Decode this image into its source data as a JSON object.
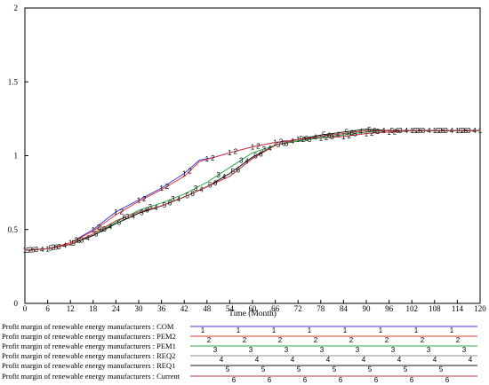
{
  "chart_data": {
    "type": "line",
    "xlabel": "Time (Month)",
    "ylabel": "",
    "xlim": [
      0,
      120
    ],
    "ylim": [
      0,
      2
    ],
    "x_ticks": [
      0,
      6,
      12,
      18,
      24,
      30,
      36,
      42,
      48,
      54,
      60,
      66,
      72,
      78,
      84,
      90,
      96,
      102,
      108,
      114,
      120
    ],
    "y_ticks": [
      0,
      0.5,
      1,
      1.5,
      2
    ],
    "x_tick_labels": [
      "0",
      "6",
      "12",
      "18",
      "24",
      "30",
      "36",
      "42",
      "48",
      "54",
      "60",
      "66",
      "72",
      "78",
      "84",
      "90",
      "96",
      "102",
      "108",
      "114",
      "120"
    ],
    "y_tick_labels": [
      "0",
      "0.5",
      "1",
      "1.5",
      "2"
    ],
    "grid": false,
    "legend_position": "bottom",
    "series": [
      {
        "name": "Profit margin of renewable energy manufacturers : COM",
        "marker": "1",
        "color": "#3b3bdc",
        "x": [
          0,
          6,
          12,
          18,
          24,
          30,
          36,
          42,
          46,
          50,
          54,
          60,
          66,
          72,
          78,
          84,
          90,
          96,
          102,
          108,
          114,
          120
        ],
        "y": [
          0.36,
          0.37,
          0.41,
          0.5,
          0.62,
          0.7,
          0.78,
          0.88,
          0.97,
          0.99,
          1.02,
          1.06,
          1.09,
          1.11,
          1.12,
          1.13,
          1.15,
          1.16,
          1.17,
          1.17,
          1.17,
          1.17
        ]
      },
      {
        "name": "Profit margin of renewable energy manufacturers : PEM2",
        "marker": "2",
        "color": "#e03c3c",
        "x": [
          0,
          6,
          12,
          18,
          24,
          30,
          36,
          42,
          46,
          50,
          54,
          60,
          66,
          72,
          78,
          84,
          90,
          96,
          102,
          108,
          114,
          120
        ],
        "y": [
          0.36,
          0.37,
          0.41,
          0.49,
          0.6,
          0.69,
          0.77,
          0.86,
          0.96,
          0.99,
          1.02,
          1.06,
          1.09,
          1.11,
          1.12,
          1.13,
          1.15,
          1.16,
          1.17,
          1.17,
          1.17,
          1.17
        ]
      },
      {
        "name": "Profit margin of renewable energy manufacturers : PEM1",
        "marker": "3",
        "color": "#2aa84a",
        "x": [
          0,
          6,
          12,
          18,
          24,
          30,
          36,
          42,
          48,
          54,
          60,
          66,
          72,
          78,
          84,
          90,
          96,
          102,
          108,
          114,
          120
        ],
        "y": [
          0.36,
          0.37,
          0.4,
          0.46,
          0.55,
          0.63,
          0.68,
          0.74,
          0.82,
          0.92,
          1.02,
          1.07,
          1.1,
          1.12,
          1.14,
          1.16,
          1.17,
          1.17,
          1.17,
          1.17,
          1.17
        ]
      },
      {
        "name": "Profit margin of renewable energy manufacturers : REQ2",
        "marker": "4",
        "color": "#8c8c8c",
        "x": [
          0,
          6,
          12,
          18,
          24,
          30,
          36,
          42,
          48,
          54,
          60,
          66,
          72,
          78,
          84,
          90,
          96,
          102,
          108,
          114,
          120
        ],
        "y": [
          0.36,
          0.37,
          0.4,
          0.46,
          0.54,
          0.61,
          0.66,
          0.72,
          0.79,
          0.88,
          0.99,
          1.07,
          1.11,
          1.13,
          1.15,
          1.17,
          1.17,
          1.17,
          1.17,
          1.17,
          1.17
        ]
      },
      {
        "name": "Profit margin of renewable energy manufacturers : REQ1",
        "marker": "5",
        "color": "#1a1a1a",
        "x": [
          0,
          6,
          12,
          18,
          24,
          30,
          36,
          42,
          48,
          54,
          60,
          66,
          72,
          78,
          84,
          90,
          96,
          102,
          108,
          114,
          120
        ],
        "y": [
          0.36,
          0.37,
          0.4,
          0.46,
          0.54,
          0.61,
          0.66,
          0.72,
          0.79,
          0.88,
          0.99,
          1.07,
          1.11,
          1.14,
          1.16,
          1.18,
          1.17,
          1.17,
          1.17,
          1.17,
          1.17
        ]
      },
      {
        "name": "Profit margin of renewable energy manufacturers : Current",
        "marker": "6",
        "color": "#b33a3a",
        "x": [
          0,
          6,
          12,
          18,
          24,
          30,
          36,
          42,
          48,
          54,
          60,
          66,
          72,
          78,
          84,
          90,
          96,
          102,
          108,
          114,
          120
        ],
        "y": [
          0.36,
          0.37,
          0.4,
          0.47,
          0.56,
          0.62,
          0.66,
          0.72,
          0.79,
          0.86,
          0.98,
          1.07,
          1.11,
          1.13,
          1.15,
          1.17,
          1.17,
          1.17,
          1.17,
          1.17,
          1.17
        ]
      }
    ]
  }
}
